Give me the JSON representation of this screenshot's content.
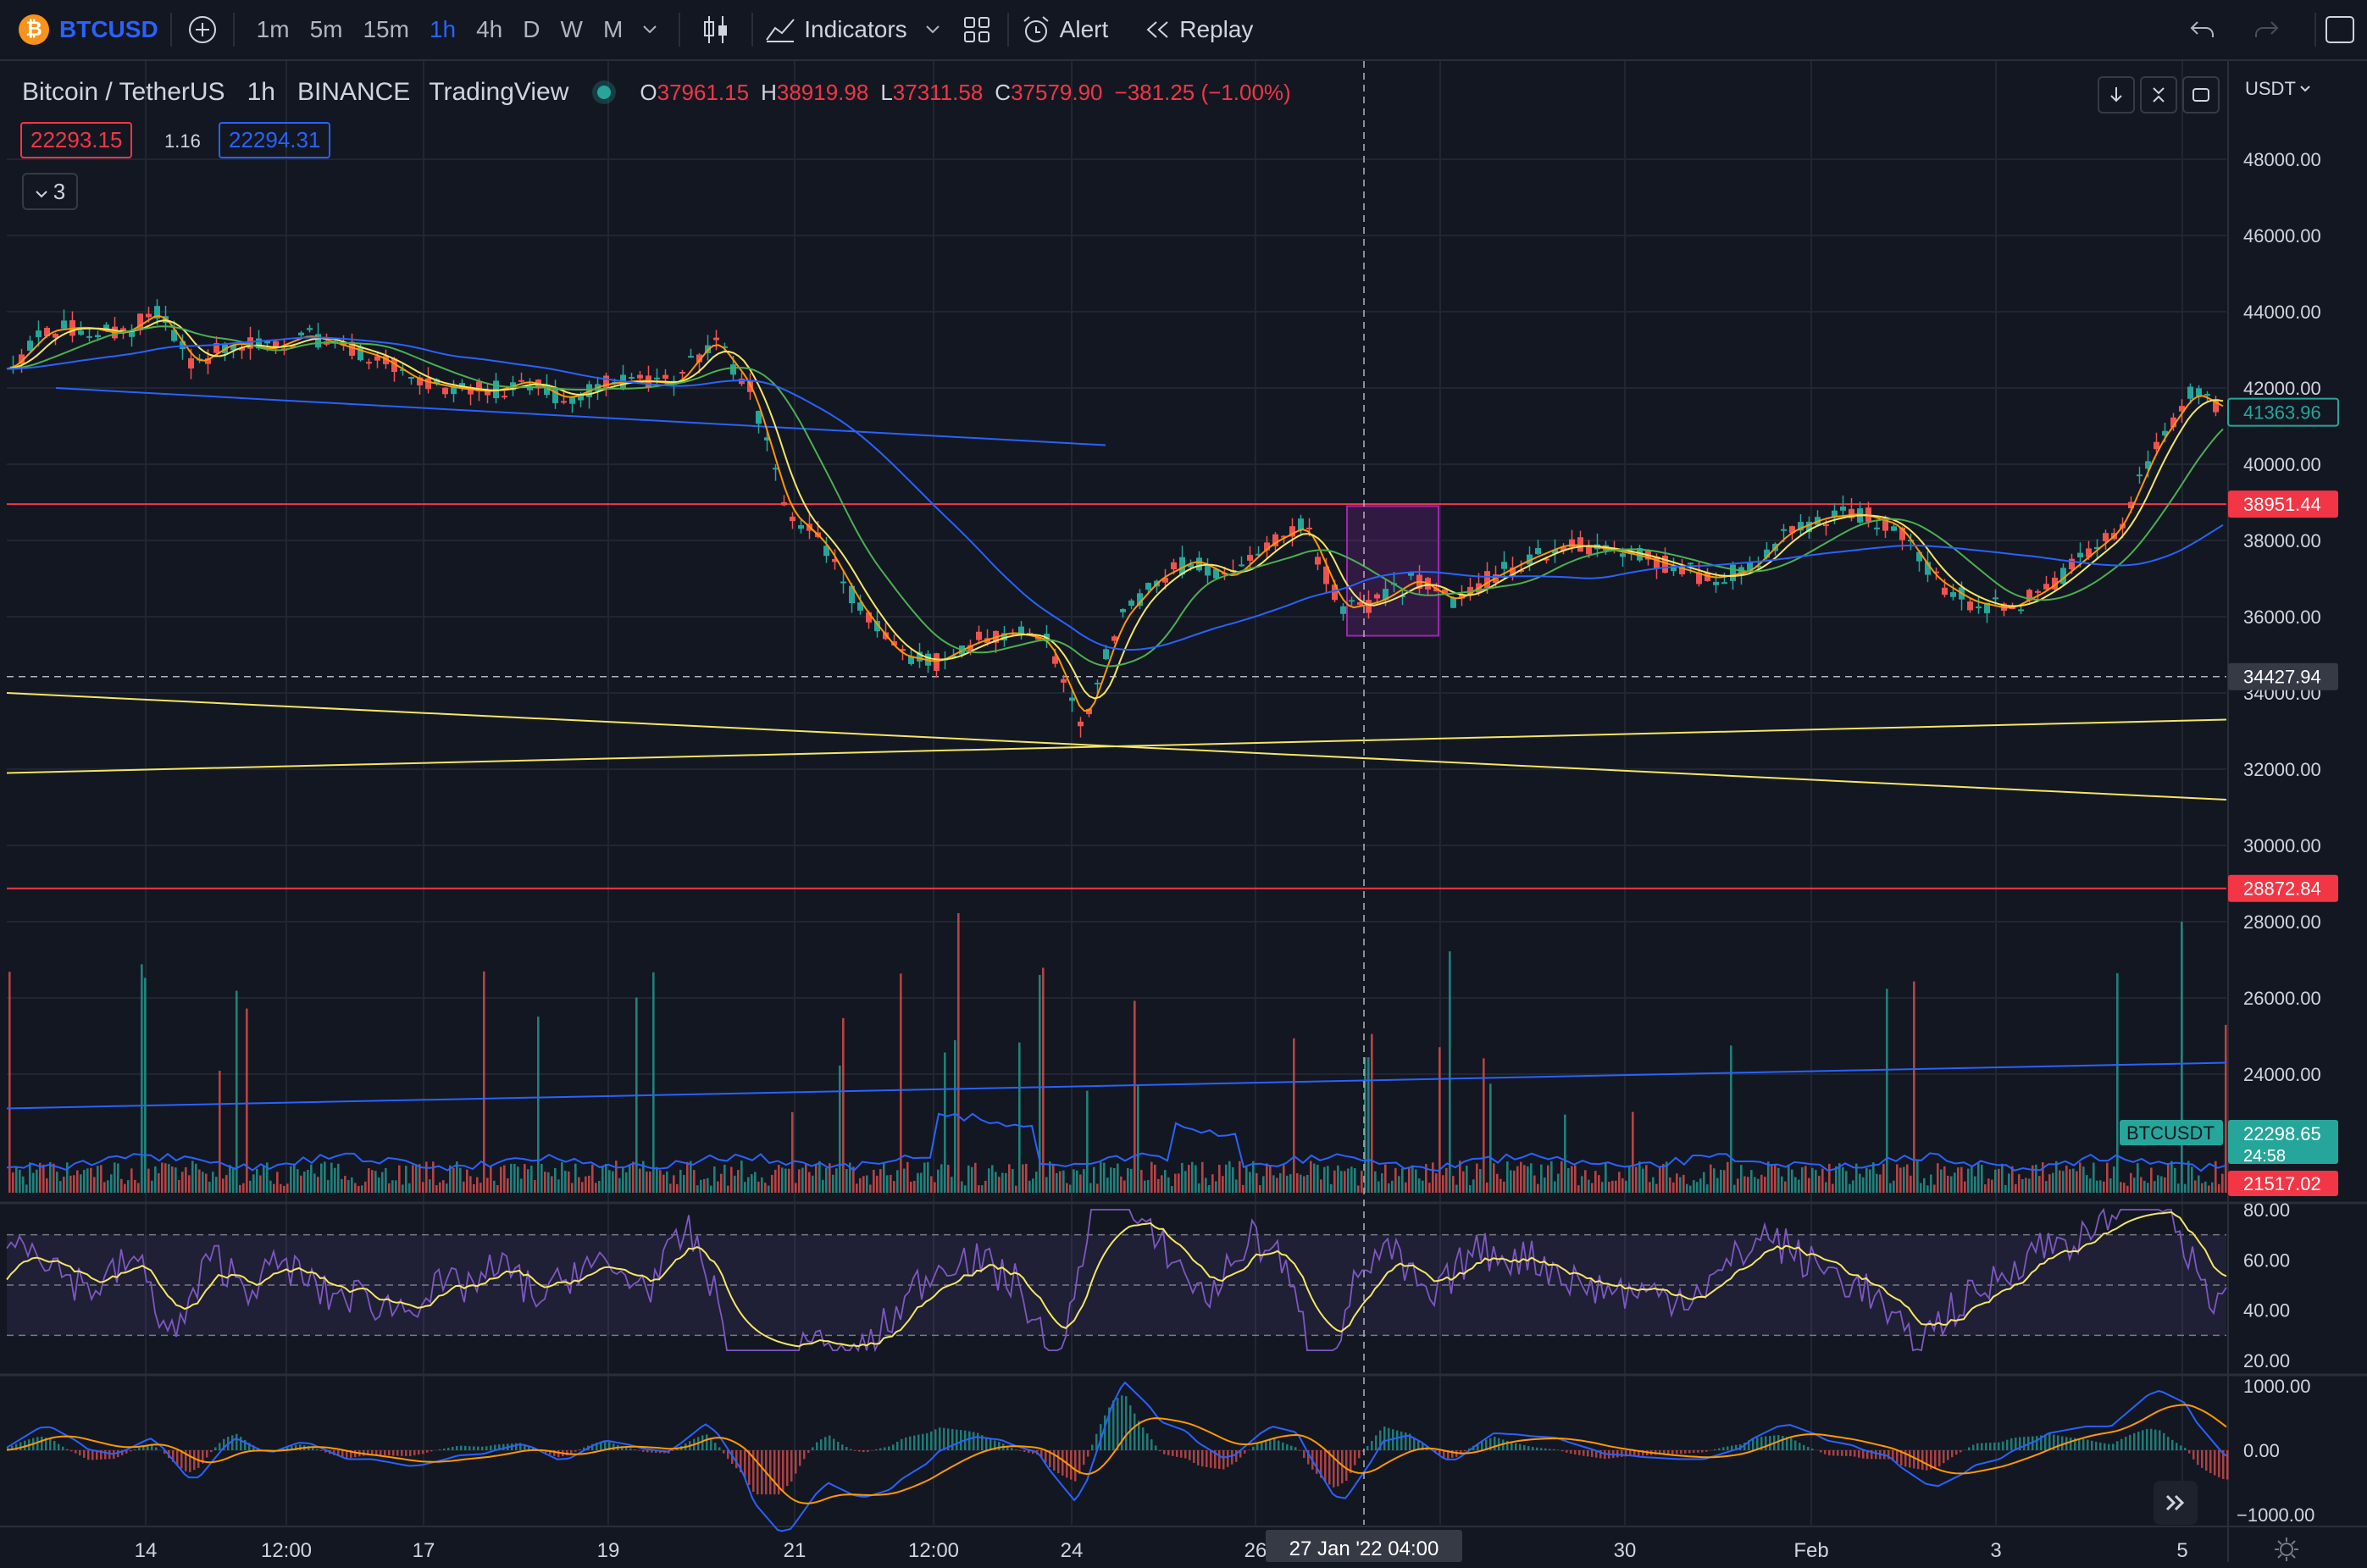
{
  "topbar": {
    "symbol": "BTCUSD",
    "timeframes": [
      "1m",
      "5m",
      "15m",
      "1h",
      "4h",
      "D",
      "W",
      "M"
    ],
    "active_timeframe": "1h",
    "indicators_label": "Indicators",
    "alert_label": "Alert",
    "replay_label": "Replay"
  },
  "legend": {
    "pair": "Bitcoin / TetherUS",
    "interval": "1h",
    "exchange": "BINANCE",
    "source": "TradingView",
    "open_label": "O",
    "open": "37961.15",
    "high_label": "H",
    "high": "38919.98",
    "low_label": "L",
    "low": "37311.58",
    "close_label": "C",
    "close": "37579.90",
    "change": "−381.25 (−1.00%)",
    "bid": "22293.15",
    "spread": "1.16",
    "ask": "22294.31",
    "collapsed_count": "3"
  },
  "price_axis": {
    "currency": "USDT",
    "ticks": [
      "48000.00",
      "46000.00",
      "44000.00",
      "42000.00",
      "40000.00",
      "38000.00",
      "36000.00",
      "34000.00",
      "32000.00",
      "30000.00",
      "28000.00",
      "26000.00",
      "24000.00"
    ],
    "labels": {
      "last": "41363.96",
      "resistance": "38951.44",
      "crosshair": "34427.94",
      "support": "28872.84",
      "btcusdt_tag": "BTCUSDT",
      "btcusdt_price": "22298.65",
      "countdown": "24:58",
      "low_line": "21517.02"
    }
  },
  "rsi_axis": {
    "ticks": [
      "80.00",
      "60.00",
      "40.00",
      "20.00"
    ]
  },
  "macd_axis": {
    "ticks": [
      "1000.00",
      "0.00",
      "−1000.00"
    ]
  },
  "time_axis": {
    "ticks": [
      "14",
      "12:00",
      "17",
      "19",
      "21",
      "12:00",
      "24",
      "26",
      "30",
      "Feb",
      "3",
      "5"
    ],
    "crosshair_label": "27 Jan '22  04:00"
  },
  "colors": {
    "background": "#131722",
    "up": "#26a69a",
    "down": "#ef5350",
    "accent": "#2962ff",
    "ma_yellow": "#f5e663",
    "ma_orange": "#ff9800",
    "ma_green": "#4caf50",
    "ma_blue": "#2962ff",
    "rsi": "#7e57c2"
  },
  "chart_data": {
    "type": "line",
    "title": "Bitcoin / TetherUS",
    "xlabel": "",
    "ylabel": "USDT",
    "ylim": [
      19500,
      49500
    ],
    "grid": true,
    "legend": "top-left",
    "x": [
      0,
      1,
      2,
      3,
      4,
      5,
      6,
      7,
      8,
      9,
      10,
      11,
      12,
      13,
      14,
      15,
      16,
      17,
      18,
      19,
      20,
      21,
      22,
      23,
      24,
      25,
      26,
      27,
      28,
      29,
      30,
      31,
      32,
      33,
      34,
      35,
      36,
      37,
      38,
      39,
      40,
      41,
      42,
      43,
      44,
      45,
      46,
      47,
      48,
      49,
      50,
      51,
      52,
      53,
      54,
      55,
      56,
      57,
      58,
      59,
      60
    ],
    "series": [
      {
        "values": [
          42500,
          43500,
          43600,
          43400,
          44000,
          42600,
          43200,
          43000,
          43400,
          43100,
          42800,
          42200,
          42000,
          41900,
          42200,
          41700,
          42100,
          42200,
          42100,
          43300,
          42000,
          38800,
          37900,
          36200,
          35000,
          34800,
          35300,
          35600,
          35400,
          33200,
          35900,
          37000,
          37500,
          37000,
          37900,
          38400,
          36200,
          36400,
          37000,
          36400,
          37000,
          37500,
          37900,
          37800,
          37600,
          37300,
          37000,
          37200,
          38200,
          38600,
          38700,
          38400,
          37000,
          36400,
          36200,
          36700,
          37500,
          38300,
          40500,
          41900,
          41364
        ]
      }
    ],
    "horizontal_levels": [
      38951.44,
      34427.94,
      28872.84
    ],
    "rsi": {
      "ylim": [
        20,
        80
      ],
      "bands": [
        70,
        50,
        30
      ]
    },
    "macd": {
      "ylim": [
        -1000,
        1000
      ]
    }
  }
}
